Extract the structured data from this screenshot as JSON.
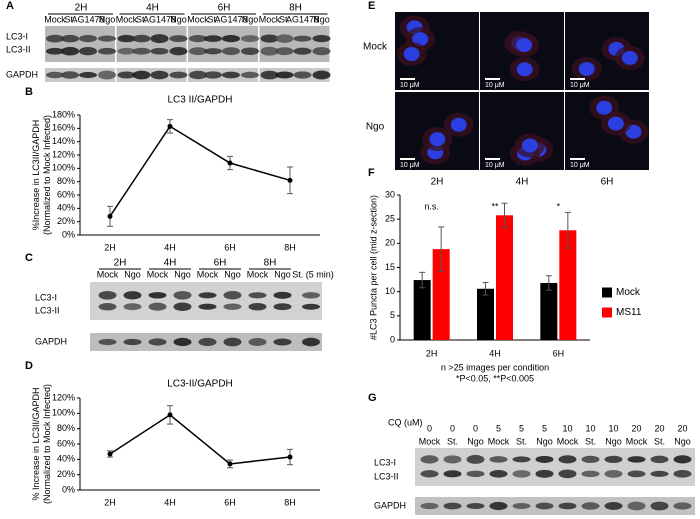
{
  "panel_letters": [
    "A",
    "B",
    "C",
    "D",
    "E",
    "F",
    "G"
  ],
  "blot_a": {
    "times": [
      "2H",
      "4H",
      "6H",
      "8H"
    ],
    "lanes": [
      "Mock",
      "St.",
      "AG1478",
      "Ngo"
    ],
    "bands": [
      "LC3-I",
      "LC3-II"
    ],
    "loading": "GAPDH"
  },
  "blot_c": {
    "times": [
      "2H",
      "4H",
      "6H",
      "8H"
    ],
    "lanes": [
      "Mock",
      "Ngo"
    ],
    "extra_lane": "St. (5 min)",
    "bands": [
      "LC3-I",
      "LC3-II"
    ],
    "loading": "GAPDH"
  },
  "microscopy": {
    "rows": [
      "Mock",
      "Ngo"
    ],
    "columns": [
      "2H",
      "4H",
      "6H"
    ],
    "scale_bar": "10 μM"
  },
  "blot_g": {
    "cq_label": "CQ (uM)",
    "cq": [
      0,
      0,
      0,
      5,
      5,
      5,
      10,
      10,
      10,
      20,
      20,
      20
    ],
    "lanes": [
      "Mock",
      "St.",
      "Ngo",
      "Mock",
      "St.",
      "Ngo",
      "Mock",
      "St.",
      "Ngo",
      "Mock",
      "St.",
      "Ngo"
    ],
    "bands": [
      "LC3-I",
      "LC3-II"
    ],
    "loading": "GAPDH"
  },
  "chart_data": [
    {
      "type": "line",
      "title": "LC3 II/GAPDH",
      "y_label": [
        "%Increase in LC3II/GAPDH",
        "(Normalized to Mock Infected)"
      ],
      "categories": [
        "2H",
        "4H",
        "6H",
        "8H"
      ],
      "values": [
        28,
        163,
        108,
        82
      ],
      "errors": [
        15,
        10,
        10,
        20
      ],
      "color": "#000000",
      "ylim": [
        0,
        180
      ],
      "yticks": [
        {
          "value": 0,
          "label": "0%"
        },
        {
          "value": 20,
          "label": "20%"
        },
        {
          "value": 40,
          "label": "40%"
        },
        {
          "value": 60,
          "label": "60%"
        },
        {
          "value": 80,
          "label": "80%"
        },
        {
          "value": 100,
          "label": "100%"
        },
        {
          "value": 120,
          "label": "120%"
        },
        {
          "value": 140,
          "label": "140%"
        },
        {
          "value": 160,
          "label": "160%"
        },
        {
          "value": 180,
          "label": "180%"
        }
      ]
    },
    {
      "type": "line",
      "title": "LC3-II/GAPDH",
      "y_label": [
        "% Increase in LC3II/GAPDH",
        "(Normalized to Mock Infected)"
      ],
      "categories": [
        "2H",
        "4H",
        "6H",
        "8H"
      ],
      "values": [
        47,
        98,
        34,
        43
      ],
      "errors": [
        4,
        12,
        5,
        10
      ],
      "color": "#000000",
      "ylim": [
        0,
        120
      ],
      "yticks": [
        {
          "value": 0,
          "label": "0%"
        },
        {
          "value": 20,
          "label": "20%"
        },
        {
          "value": 40,
          "label": "40%"
        },
        {
          "value": 60,
          "label": "60%"
        },
        {
          "value": 80,
          "label": "80%"
        },
        {
          "value": 100,
          "label": "100%"
        },
        {
          "value": 120,
          "label": "120%"
        }
      ]
    },
    {
      "type": "bar",
      "y_label": [
        "#LC3 Puncta per cell (mid z-section)"
      ],
      "categories": [
        "2H",
        "4H",
        "6H"
      ],
      "series": [
        {
          "name": "Mock",
          "color": "#000000",
          "values": [
            12.4,
            10.6,
            11.8
          ],
          "errors": [
            1.6,
            1.3,
            1.5
          ]
        },
        {
          "name": "MS11",
          "color": "#ff0000",
          "values": [
            18.8,
            25.8,
            22.7
          ],
          "errors": [
            4.6,
            2.5,
            3.7
          ]
        }
      ],
      "annotations": [
        "n.s.",
        "**",
        "*"
      ],
      "notes": [
        "n >25 images per condition",
        "*P<0.05, **P<0.005"
      ],
      "ylim": [
        0,
        30
      ],
      "yticks": [
        0,
        5,
        10,
        15,
        20,
        25,
        30
      ],
      "legend": "right"
    }
  ]
}
